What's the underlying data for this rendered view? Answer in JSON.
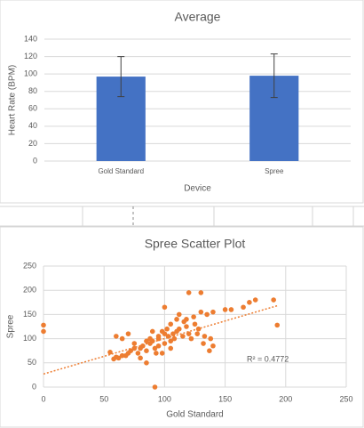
{
  "chart_data": [
    {
      "type": "bar",
      "title": "Average",
      "ylabel": "Heart Rate (BPM)",
      "xlabel": "Device",
      "categories": [
        "Gold Standard",
        "Spree"
      ],
      "values": [
        97,
        98
      ],
      "errors": [
        23,
        25
      ],
      "color": "#4472c4",
      "ylim": [
        0,
        140
      ],
      "yticks": [
        0,
        20,
        40,
        60,
        80,
        100,
        120,
        140
      ],
      "grid": true
    },
    {
      "type": "scatter",
      "title": "Spree Scatter Plot",
      "xlabel": "Gold Standard",
      "ylabel": "Spree",
      "x": [
        0,
        0,
        55,
        60,
        62,
        65,
        68,
        70,
        72,
        75,
        78,
        80,
        82,
        85,
        85,
        88,
        90,
        92,
        95,
        95,
        98,
        100,
        100,
        100,
        102,
        105,
        105,
        108,
        110,
        110,
        112,
        115,
        118,
        120,
        120,
        122,
        125,
        128,
        130,
        130,
        132,
        135,
        138,
        140,
        140,
        150,
        155,
        165,
        170,
        175,
        190,
        193,
        92,
        85,
        88,
        80,
        75,
        70,
        65,
        60,
        58,
        95,
        98,
        103,
        107,
        112,
        116,
        124,
        127,
        133,
        137,
        118,
        105,
        90,
        93
      ],
      "y": [
        128,
        115,
        72,
        105,
        60,
        100,
        65,
        110,
        75,
        80,
        70,
        60,
        85,
        75,
        50,
        90,
        95,
        80,
        100,
        85,
        70,
        110,
        165,
        90,
        120,
        130,
        95,
        100,
        140,
        115,
        150,
        105,
        125,
        195,
        110,
        100,
        130,
        120,
        195,
        155,
        90,
        150,
        100,
        85,
        155,
        160,
        160,
        165,
        175,
        180,
        180,
        128,
        0,
        95,
        100,
        80,
        90,
        70,
        65,
        62,
        58,
        105,
        115,
        105,
        110,
        120,
        135,
        145,
        110,
        105,
        75,
        140,
        80,
        115,
        70
      ],
      "color": "#ed7d31",
      "xlim": [
        0,
        250
      ],
      "xticks": [
        0,
        50,
        100,
        150,
        200,
        250
      ],
      "ylim": [
        0,
        250
      ],
      "yticks": [
        0,
        50,
        100,
        150,
        200,
        250
      ],
      "grid": true,
      "trendline": {
        "x": [
          0,
          193
        ],
        "y": [
          27,
          168
        ]
      },
      "annotation": "R² = 0.4772"
    }
  ]
}
